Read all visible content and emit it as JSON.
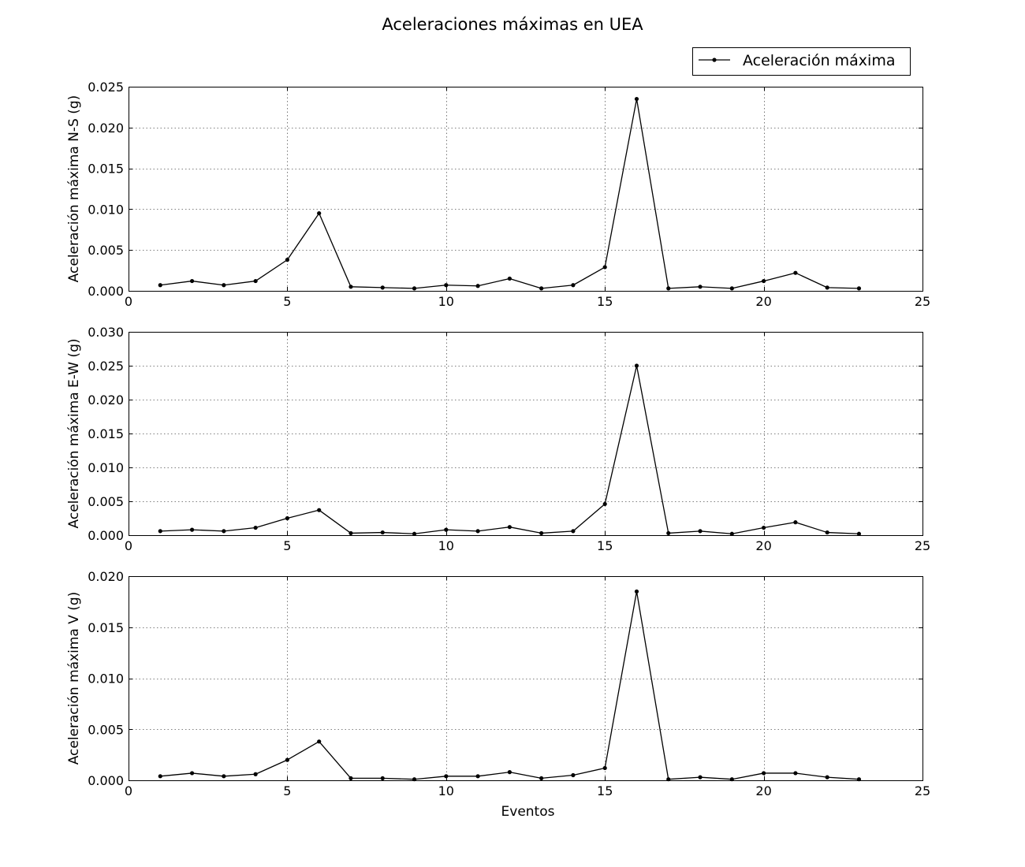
{
  "figure": {
    "title": "Aceleraciones máximas en UEA",
    "legend_label": "Aceleración máxima",
    "legend_position": "top-right",
    "line_color": "#000000",
    "grid_color": "#555555"
  },
  "chart_data": [
    {
      "type": "line",
      "title": "Aceleraciones máximas en UEA",
      "xlabel": "",
      "ylabel": "Aceleración máxima N-S (g)",
      "xlim": [
        0,
        25
      ],
      "ylim": [
        0,
        0.025
      ],
      "xticks": [
        0,
        5,
        10,
        15,
        20,
        25
      ],
      "xtick_labels": [
        "0",
        "5",
        "10",
        "15",
        "20",
        "25"
      ],
      "yticks": [
        0,
        0.005,
        0.01,
        0.015,
        0.02,
        0.025
      ],
      "ytick_labels": [
        "0.000",
        "0.005",
        "0.010",
        "0.015",
        "0.020",
        "0.025"
      ],
      "grid": true,
      "series": [
        {
          "name": "Aceleración máxima",
          "x": [
            1,
            2,
            3,
            4,
            5,
            6,
            7,
            8,
            9,
            10,
            11,
            12,
            13,
            14,
            15,
            16,
            17,
            18,
            19,
            20,
            21,
            22,
            23
          ],
          "values": [
            0.0007,
            0.0012,
            0.0007,
            0.0012,
            0.0038,
            0.0095,
            0.0005,
            0.0004,
            0.0003,
            0.0007,
            0.0006,
            0.0015,
            0.0003,
            0.0007,
            0.0029,
            0.0235,
            0.0003,
            0.0005,
            0.0003,
            0.0012,
            0.0022,
            0.0004,
            0.0003
          ]
        }
      ]
    },
    {
      "type": "line",
      "xlabel": "",
      "ylabel": "Aceleración máxima E-W (g)",
      "xlim": [
        0,
        25
      ],
      "ylim": [
        0,
        0.03
      ],
      "xticks": [
        0,
        5,
        10,
        15,
        20,
        25
      ],
      "xtick_labels": [
        "0",
        "5",
        "10",
        "15",
        "20",
        "25"
      ],
      "yticks": [
        0,
        0.005,
        0.01,
        0.015,
        0.02,
        0.025,
        0.03
      ],
      "ytick_labels": [
        "0.000",
        "0.005",
        "0.010",
        "0.015",
        "0.020",
        "0.025",
        "0.030"
      ],
      "grid": true,
      "series": [
        {
          "name": "Aceleración máxima",
          "x": [
            1,
            2,
            3,
            4,
            5,
            6,
            7,
            8,
            9,
            10,
            11,
            12,
            13,
            14,
            15,
            16,
            17,
            18,
            19,
            20,
            21,
            22,
            23
          ],
          "values": [
            0.0006,
            0.0008,
            0.0006,
            0.0011,
            0.0025,
            0.0037,
            0.0003,
            0.0004,
            0.0002,
            0.0008,
            0.0006,
            0.0012,
            0.0003,
            0.0006,
            0.0046,
            0.025,
            0.0003,
            0.0006,
            0.0002,
            0.0011,
            0.0019,
            0.0004,
            0.0002
          ]
        }
      ]
    },
    {
      "type": "line",
      "xlabel": "Eventos",
      "ylabel": "Aceleración máxima V (g)",
      "xlim": [
        0,
        25
      ],
      "ylim": [
        0,
        0.02
      ],
      "xticks": [
        0,
        5,
        10,
        15,
        20,
        25
      ],
      "xtick_labels": [
        "0",
        "5",
        "10",
        "15",
        "20",
        "25"
      ],
      "yticks": [
        0,
        0.005,
        0.01,
        0.015,
        0.02
      ],
      "ytick_labels": [
        "0.000",
        "0.005",
        "0.010",
        "0.015",
        "0.020"
      ],
      "grid": true,
      "series": [
        {
          "name": "Aceleración máxima",
          "x": [
            1,
            2,
            3,
            4,
            5,
            6,
            7,
            8,
            9,
            10,
            11,
            12,
            13,
            14,
            15,
            16,
            17,
            18,
            19,
            20,
            21,
            22,
            23
          ],
          "values": [
            0.0004,
            0.0007,
            0.0004,
            0.0006,
            0.002,
            0.0038,
            0.0002,
            0.0002,
            0.0001,
            0.0004,
            0.0004,
            0.0008,
            0.0002,
            0.0005,
            0.0012,
            0.0185,
            0.0001,
            0.0003,
            0.0001,
            0.0007,
            0.0007,
            0.0003,
            0.0001
          ]
        }
      ]
    }
  ]
}
